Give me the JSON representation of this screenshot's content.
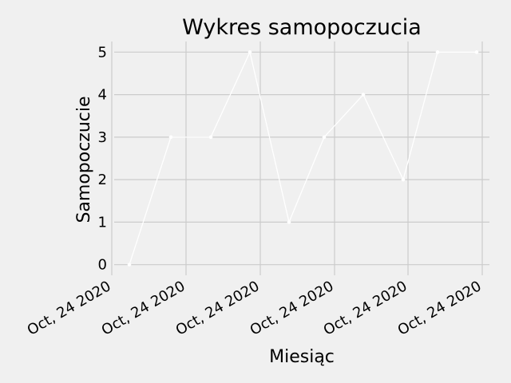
{
  "chart_data": {
    "type": "line",
    "title": "Wykres samopoczucia",
    "xlabel": "Miesiąc",
    "ylabel": "Samopoczucie",
    "x_tick_labels": [
      "Oct, 24 2020",
      "Oct, 24 2020",
      "Oct, 24 2020",
      "Oct, 24 2020",
      "Oct, 24 2020",
      "Oct, 24 2020"
    ],
    "y_ticks": [
      0,
      1,
      2,
      3,
      4,
      5
    ],
    "ylim": [
      -0.25,
      5.25
    ],
    "grid": true,
    "series": [
      {
        "values": [
          0,
          3,
          3,
          5,
          1,
          3,
          4,
          2,
          5,
          5
        ],
        "color": "#ffffff"
      }
    ]
  },
  "colors": {
    "background": "#f0f0f0",
    "grid": "#cbcbcb",
    "line": "#ffffff"
  }
}
